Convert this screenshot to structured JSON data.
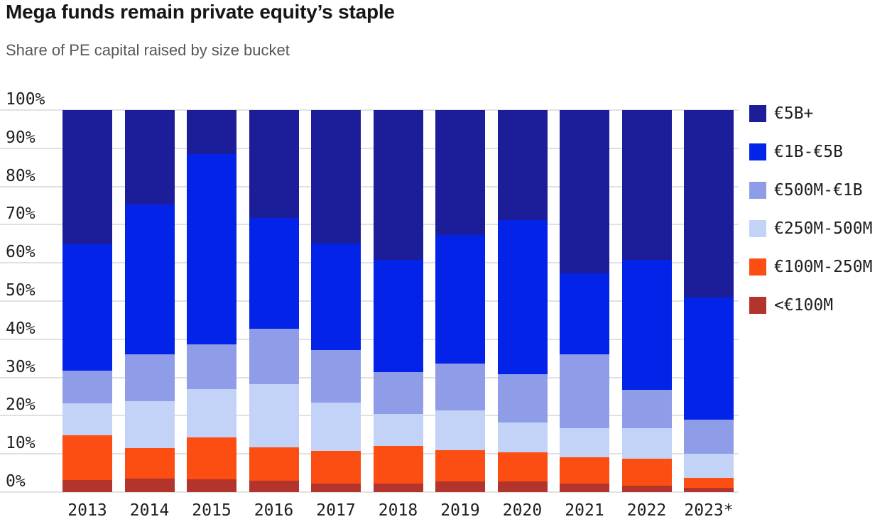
{
  "header": {
    "title": "Mega funds remain private equity’s staple",
    "subtitle": "Share of PE capital raised by size bucket"
  },
  "chart_data": {
    "type": "bar",
    "stacked": true,
    "title": "Mega funds remain private equity’s staple",
    "subtitle": "Share of PE capital raised by size bucket",
    "categories": [
      "2013",
      "2014",
      "2015",
      "2016",
      "2017",
      "2018",
      "2019",
      "2020",
      "2021",
      "2022",
      "2023*"
    ],
    "series": [
      {
        "name": "<€100M",
        "color": "#b2342d",
        "values": [
          3.2,
          3.5,
          3.3,
          2.9,
          2.3,
          2.2,
          2.7,
          2.8,
          2.3,
          1.7,
          1.1
        ]
      },
      {
        "name": "€100M-250M",
        "color": "#fc4e12",
        "values": [
          11.6,
          8.0,
          11.0,
          8.8,
          8.5,
          9.9,
          8.3,
          7.6,
          6.9,
          7.0,
          2.7
        ]
      },
      {
        "name": "€250M-500M",
        "color": "#c3d3f8",
        "values": [
          8.5,
          12.3,
          12.6,
          16.6,
          12.7,
          8.4,
          10.4,
          7.9,
          7.6,
          8.1,
          6.2
        ]
      },
      {
        "name": "€500M-€1B",
        "color": "#8f9de8",
        "values": [
          8.5,
          12.2,
          11.8,
          14.4,
          13.6,
          10.9,
          12.3,
          12.5,
          19.2,
          9.9,
          9.0
        ]
      },
      {
        "name": "€1B-€5B",
        "color": "#0324e8",
        "values": [
          33.0,
          39.3,
          49.8,
          29.0,
          27.9,
          29.3,
          33.6,
          40.3,
          21.2,
          34.0,
          32.0
        ]
      },
      {
        "name": "€5B+",
        "color": "#1c1e99",
        "values": [
          35.2,
          24.7,
          11.5,
          28.3,
          35.0,
          39.3,
          32.7,
          28.9,
          42.8,
          39.3,
          49.0
        ]
      }
    ],
    "legend_order_top_to_bottom": [
      "€5B+",
      "€1B-€5B",
      "€500M-€1B",
      "€250M-500M",
      "€100M-250M",
      "<€100M"
    ],
    "yticks": [
      0,
      10,
      20,
      30,
      40,
      50,
      60,
      70,
      80,
      90,
      100
    ],
    "ytick_suffix": "%",
    "ylim": [
      0,
      100
    ],
    "xlabel": "",
    "ylabel": "",
    "grid": "horizontal",
    "legend_position": "right"
  }
}
